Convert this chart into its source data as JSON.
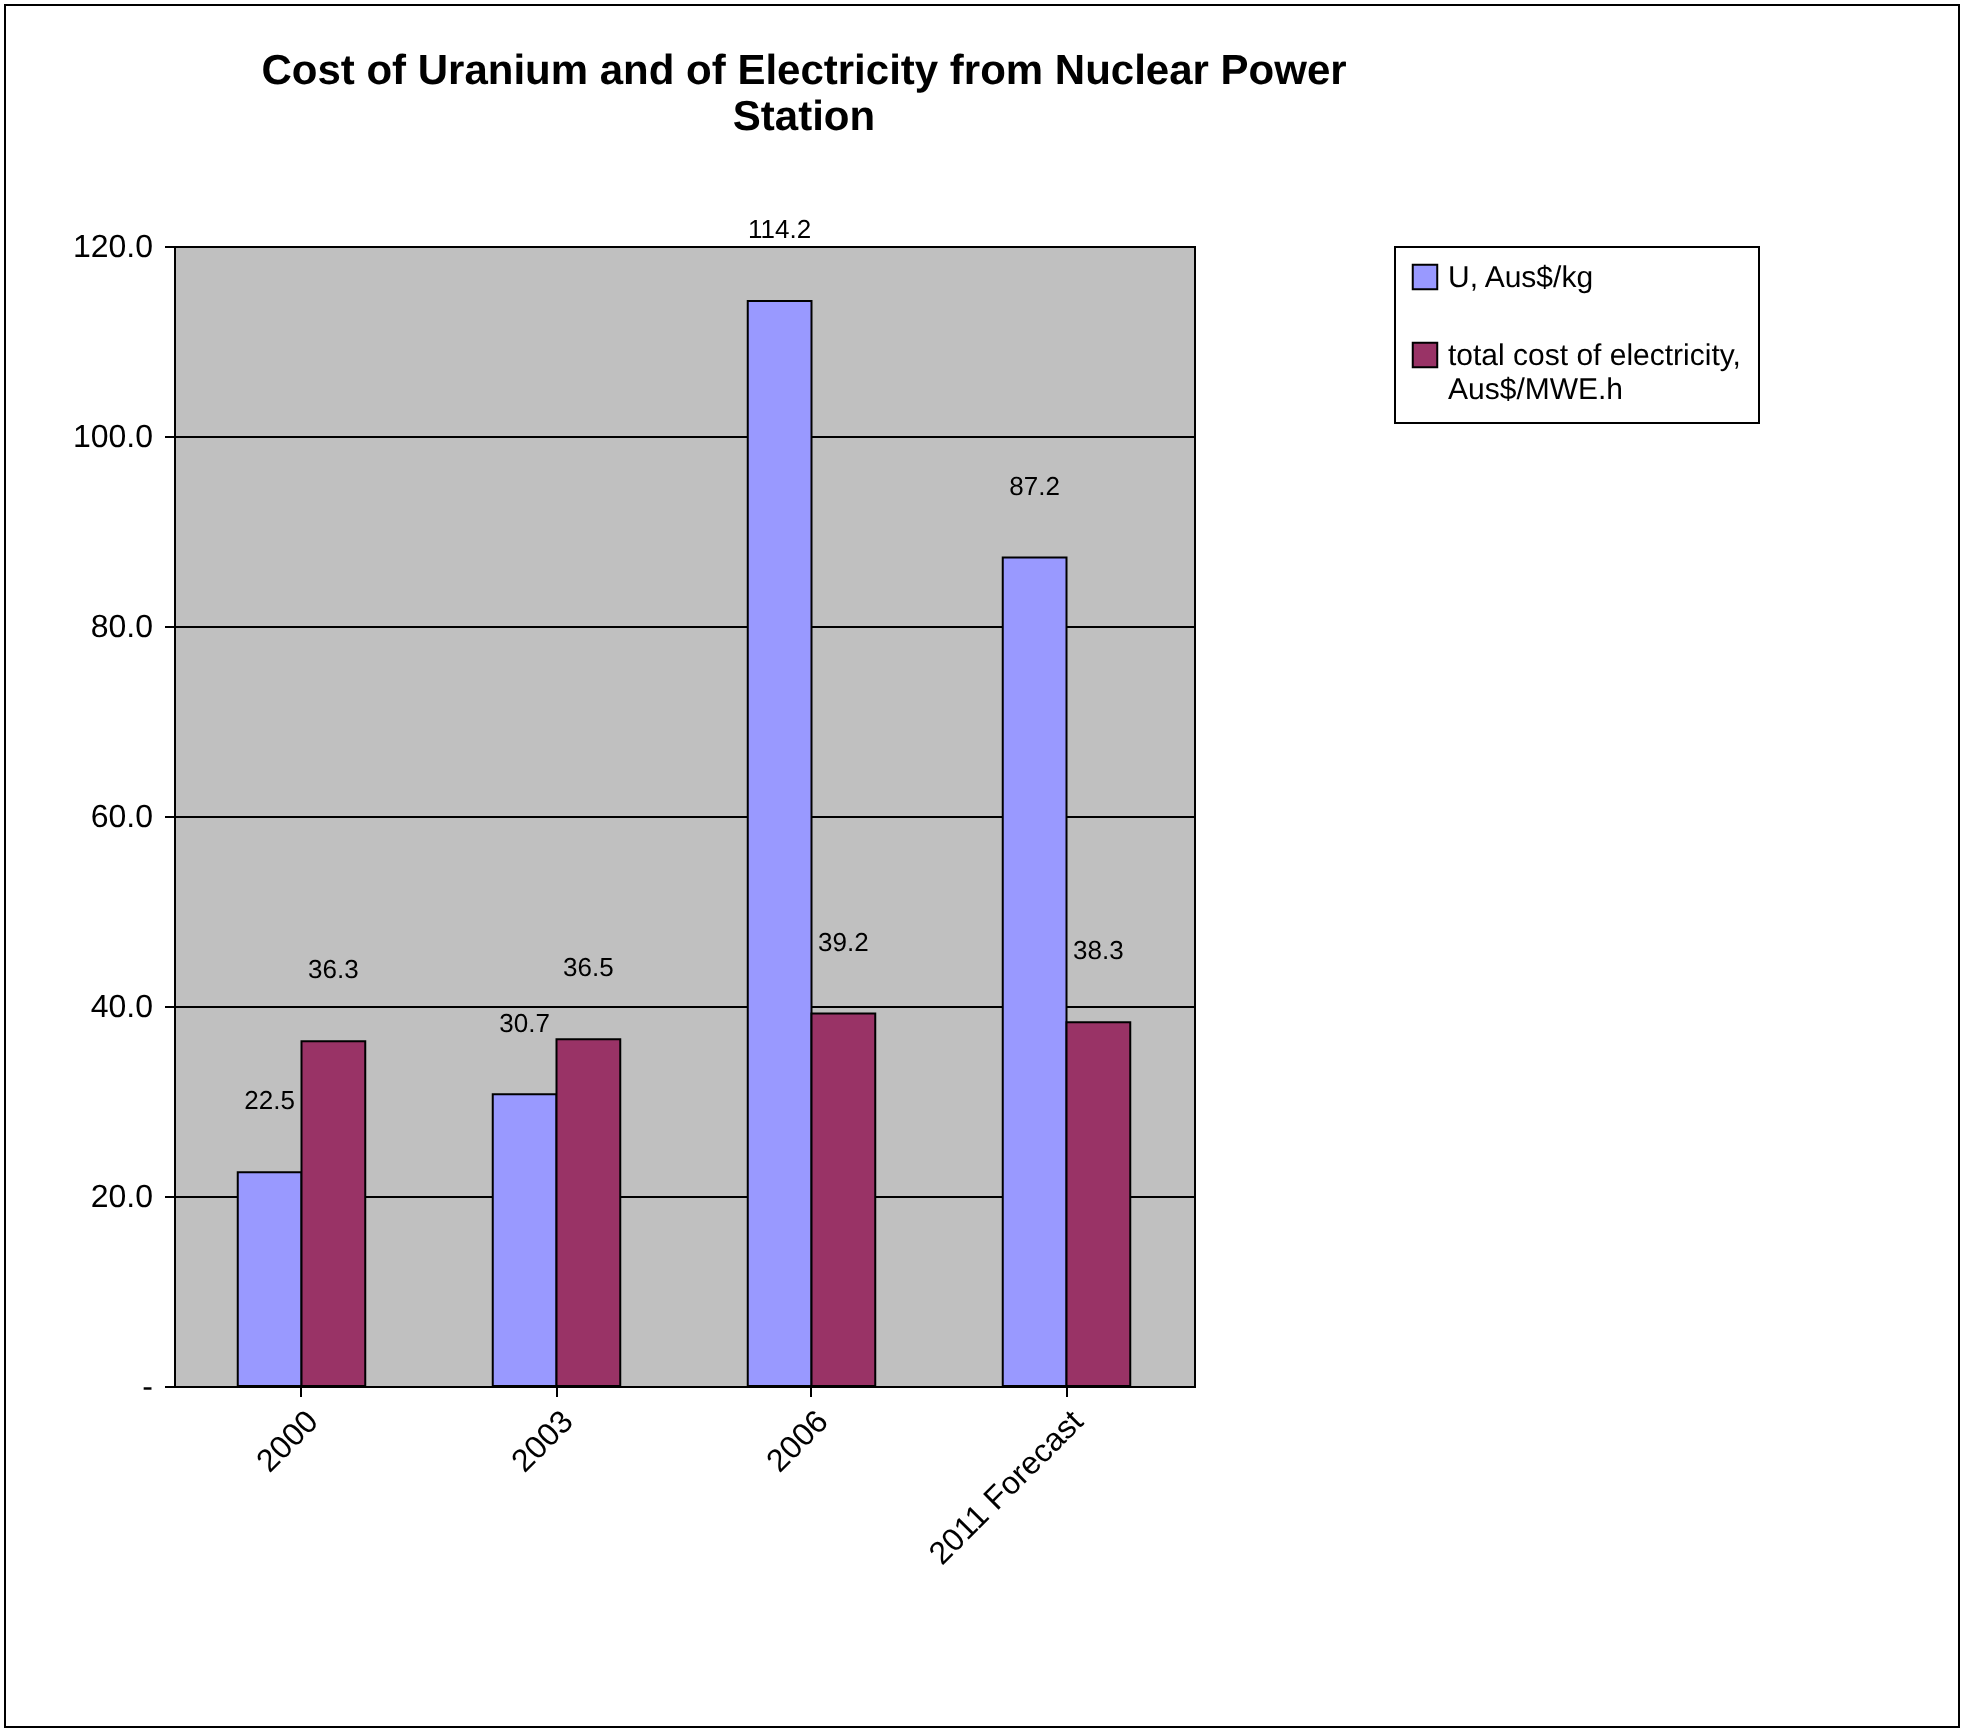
{
  "chart_data": {
    "type": "bar",
    "title": "Cost of Uranium and of Electricity from Nuclear Power Station",
    "categories": [
      "2000",
      "2003",
      "2006",
      "2011 Forecast"
    ],
    "series": [
      {
        "name": "U, Aus$/kg",
        "color": "#9999ff",
        "values": [
          22.5,
          30.7,
          114.2,
          87.2
        ]
      },
      {
        "name": "total cost of electricity, Aus$/MWE.h",
        "color": "#993366",
        "values": [
          36.3,
          36.5,
          39.2,
          38.3
        ]
      }
    ],
    "ylim": [
      0,
      120
    ],
    "yticks": [
      {
        "value": 0,
        "label": "-"
      },
      {
        "value": 20,
        "label": "20.0"
      },
      {
        "value": 40,
        "label": "40.0"
      },
      {
        "value": 60,
        "label": "60.0"
      },
      {
        "value": 80,
        "label": "80.0"
      },
      {
        "value": 100,
        "label": "100.0"
      },
      {
        "value": 120,
        "label": "120.0"
      }
    ],
    "grid": "y",
    "legend": "right",
    "data_labels": true
  }
}
